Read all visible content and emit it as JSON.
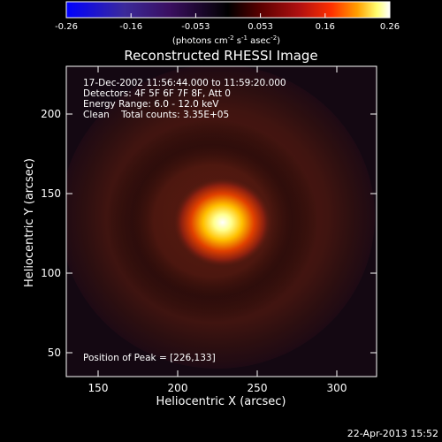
{
  "chart_data": {
    "type": "heatmap",
    "title": "Reconstructed RHESSI Image",
    "xlabel": "Heliocentric X (arcsec)",
    "ylabel": "Heliocentric Y (arcsec)",
    "xlim": [
      130,
      325
    ],
    "ylim": [
      35,
      230
    ],
    "x_ticks": [
      150,
      200,
      250,
      300
    ],
    "y_ticks": [
      50,
      100,
      150,
      200
    ],
    "colorbar": {
      "ticks": [
        "-0.26",
        "-0.16",
        "-0.053",
        "0.053",
        "0.16",
        "0.26"
      ],
      "range": [
        -0.26,
        0.26
      ],
      "unit": "(photons cm",
      "unit_exp1": "-2",
      "unit_mid": " s",
      "unit_exp2": "-1",
      "unit_end": " asec",
      "unit_exp3": "-2",
      "unit_close": ")",
      "colors": [
        "#0000ff",
        "#3b2a9a",
        "#3a0f60",
        "#000000",
        "#5a0000",
        "#b01010",
        "#ff3000",
        "#ffa000",
        "#ffff70",
        "#ffffff"
      ]
    },
    "peak": {
      "x": 226,
      "y": 133,
      "value": 0.26
    },
    "annotations": [
      "17-Dec-2002 11:56:44.000 to 11:59:20.000",
      "Detectors: 4F 5F 6F 7F 8F, Att 0",
      "Energy Range: 6.0 - 12.0 keV",
      "Clean    Total counts: 3.35E+05"
    ],
    "peak_label": "Position of Peak = [226,133]"
  },
  "footer": {
    "timestamp": "22-Apr-2013 15:52"
  }
}
